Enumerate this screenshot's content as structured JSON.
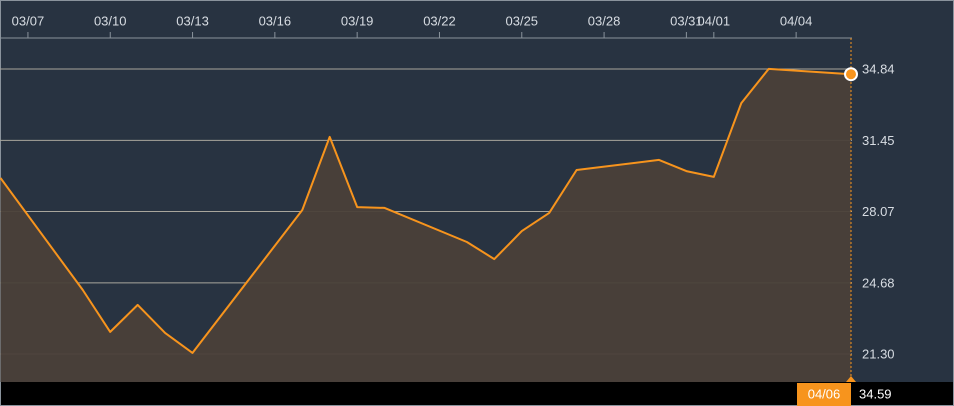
{
  "chart_data": {
    "type": "area",
    "x": [
      "03/06",
      "03/09",
      "03/10",
      "03/11",
      "03/12",
      "03/13",
      "03/17",
      "03/18",
      "03/19",
      "03/20",
      "03/23",
      "03/24",
      "03/25",
      "03/26",
      "03/27",
      "03/30",
      "03/31",
      "04/01",
      "04/02",
      "04/03",
      "04/06"
    ],
    "series": [
      {
        "color": "#f7941d",
        "values": [
          29.66,
          24.34,
          22.35,
          23.63,
          22.3,
          21.35,
          28.14,
          31.61,
          28.28,
          28.24,
          26.62,
          25.81,
          27.14,
          28.0,
          30.04,
          30.52,
          29.99,
          29.71,
          33.22,
          34.84,
          34.59
        ]
      }
    ],
    "xlim": [
      "03/06",
      "04/06"
    ],
    "xticks": [
      "03/07",
      "03/10",
      "03/13",
      "03/16",
      "03/19",
      "03/22",
      "03/25",
      "03/28",
      "03/31",
      "04/01",
      "04/04"
    ],
    "ylim": [
      19.97,
      36.31
    ],
    "yticks": [
      {
        "value": 21.3,
        "label": "21.30"
      },
      24.68,
      28.07,
      31.45,
      34.84
    ],
    "grid": true
  }
}
